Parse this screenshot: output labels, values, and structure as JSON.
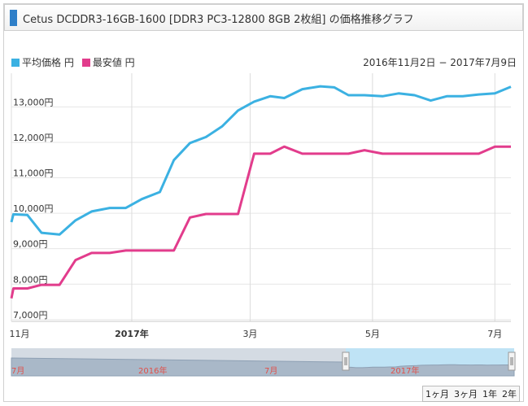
{
  "header": {
    "title": "Cetus DCDDR3-16GB-1600 [DDR3 PC3-12800 8GB 2枚組] の価格推移グラフ"
  },
  "legend": [
    {
      "label": "平均価格 円",
      "color": "#3bb1e2"
    },
    {
      "label": "最安値 円",
      "color": "#e23c8c"
    }
  ],
  "date_range": "2016年11月2日 − 2017年7月9日",
  "range_buttons": [
    "1ヶ月",
    "3ヶ月",
    "1年",
    "2年"
  ],
  "navigator": {
    "labels": [
      "7月",
      "2016年",
      "7月",
      "2017年"
    ]
  },
  "chart_data": {
    "type": "line",
    "x_start": "2016-11-02",
    "x_end": "2017-07-09",
    "x_ticks": [
      {
        "label": "11月",
        "date": "2016-11-01",
        "bold": false
      },
      {
        "label": "2017年",
        "date": "2017-01-01",
        "bold": true
      },
      {
        "label": "3月",
        "date": "2017-03-01",
        "bold": false
      },
      {
        "label": "5月",
        "date": "2017-05-01",
        "bold": false
      },
      {
        "label": "7月",
        "date": "2017-07-01",
        "bold": false
      }
    ],
    "y_ticks": [
      {
        "value": 7000,
        "label": "7,000円"
      },
      {
        "value": 8000,
        "label": "8,000円"
      },
      {
        "value": 9000,
        "label": "9,000円"
      },
      {
        "value": 10000,
        "label": "10,000円"
      },
      {
        "value": 11000,
        "label": "11,000円"
      },
      {
        "value": 12000,
        "label": "12,000円"
      },
      {
        "value": 13000,
        "label": "13,000円"
      }
    ],
    "ylim": [
      6950,
      13950
    ],
    "series": [
      {
        "name": "平均価格 円",
        "color": "#3bb1e2",
        "points": [
          [
            "2016-11-02",
            9750
          ],
          [
            "2016-11-03",
            9970
          ],
          [
            "2016-11-10",
            9950
          ],
          [
            "2016-11-17",
            9450
          ],
          [
            "2016-11-26",
            9400
          ],
          [
            "2016-12-04",
            9800
          ],
          [
            "2016-12-12",
            10050
          ],
          [
            "2016-12-21",
            10150
          ],
          [
            "2016-12-29",
            10150
          ],
          [
            "2017-01-06",
            10400
          ],
          [
            "2017-01-15",
            10600
          ],
          [
            "2017-01-22",
            11500
          ],
          [
            "2017-01-30",
            11980
          ],
          [
            "2017-02-07",
            12150
          ],
          [
            "2017-02-15",
            12450
          ],
          [
            "2017-02-23",
            12900
          ],
          [
            "2017-03-03",
            13150
          ],
          [
            "2017-03-11",
            13300
          ],
          [
            "2017-03-18",
            13250
          ],
          [
            "2017-03-27",
            13500
          ],
          [
            "2017-04-05",
            13580
          ],
          [
            "2017-04-12",
            13550
          ],
          [
            "2017-04-19",
            13330
          ],
          [
            "2017-04-27",
            13330
          ],
          [
            "2017-05-06",
            13300
          ],
          [
            "2017-05-14",
            13380
          ],
          [
            "2017-05-22",
            13330
          ],
          [
            "2017-05-30",
            13180
          ],
          [
            "2017-06-07",
            13300
          ],
          [
            "2017-06-15",
            13300
          ],
          [
            "2017-06-23",
            13350
          ],
          [
            "2017-07-01",
            13380
          ],
          [
            "2017-07-09",
            13570
          ]
        ]
      },
      {
        "name": "最安値 円",
        "color": "#e23c8c",
        "points": [
          [
            "2016-11-02",
            7600
          ],
          [
            "2016-11-03",
            7880
          ],
          [
            "2016-11-10",
            7880
          ],
          [
            "2016-11-17",
            7980
          ],
          [
            "2016-11-26",
            7980
          ],
          [
            "2016-12-04",
            8680
          ],
          [
            "2016-12-12",
            8880
          ],
          [
            "2016-12-21",
            8880
          ],
          [
            "2016-12-29",
            8950
          ],
          [
            "2017-01-06",
            8950
          ],
          [
            "2017-01-22",
            8950
          ],
          [
            "2017-01-30",
            9880
          ],
          [
            "2017-02-07",
            9980
          ],
          [
            "2017-02-15",
            9980
          ],
          [
            "2017-02-23",
            9980
          ],
          [
            "2017-03-03",
            11680
          ],
          [
            "2017-03-11",
            11680
          ],
          [
            "2017-03-18",
            11880
          ],
          [
            "2017-03-27",
            11680
          ],
          [
            "2017-04-05",
            11680
          ],
          [
            "2017-04-12",
            11680
          ],
          [
            "2017-04-19",
            11680
          ],
          [
            "2017-04-27",
            11780
          ],
          [
            "2017-05-06",
            11680
          ],
          [
            "2017-05-14",
            11680
          ],
          [
            "2017-05-22",
            11680
          ],
          [
            "2017-05-30",
            11680
          ],
          [
            "2017-06-07",
            11680
          ],
          [
            "2017-06-15",
            11680
          ],
          [
            "2017-06-23",
            11680
          ],
          [
            "2017-07-01",
            11880
          ],
          [
            "2017-07-09",
            11880
          ]
        ]
      }
    ]
  }
}
